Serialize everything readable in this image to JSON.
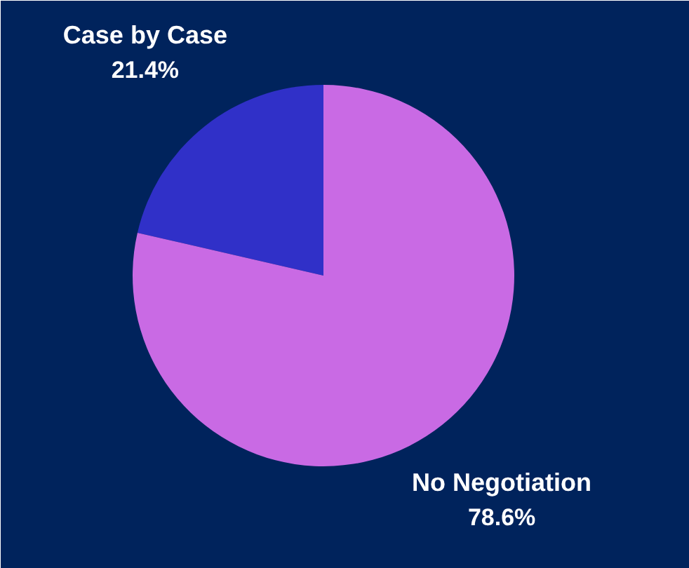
{
  "chart_data": {
    "type": "pie",
    "categories": [
      "Case by Case",
      "No Negotiation"
    ],
    "values": [
      21.4,
      78.6
    ],
    "colors": [
      "#3030c8",
      "#c96ae4"
    ],
    "value_labels": [
      "21.4%",
      "78.6%"
    ]
  }
}
